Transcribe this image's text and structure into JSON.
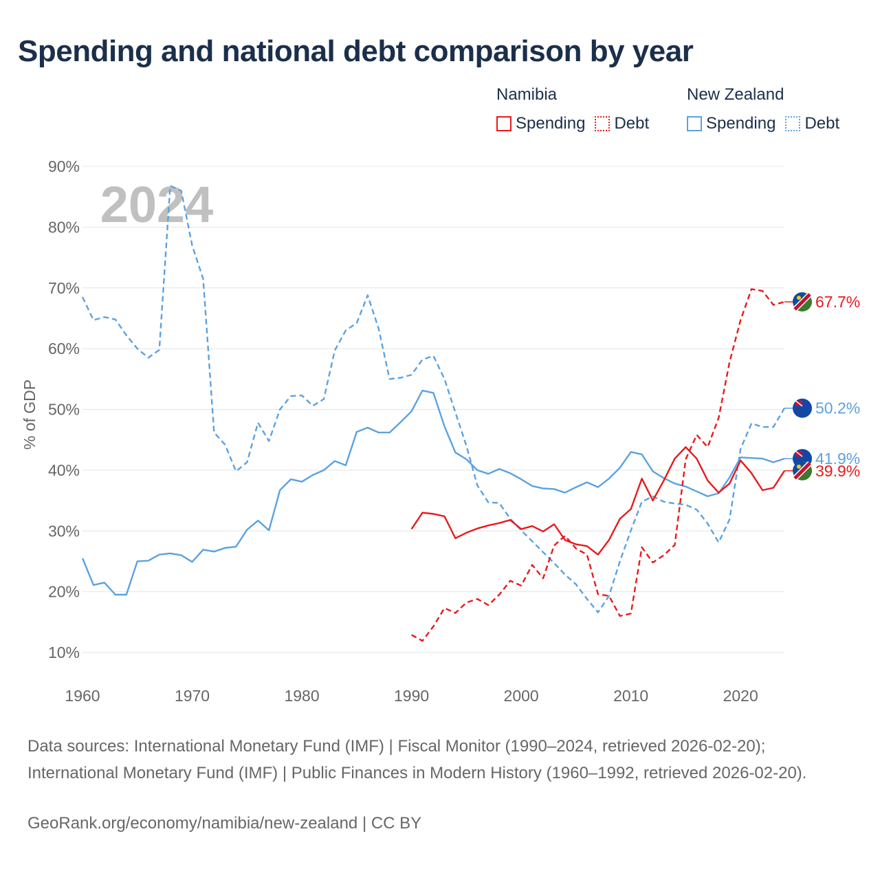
{
  "title": "Spending and national debt comparison by year",
  "legend": {
    "namibia": {
      "name": "Namibia",
      "spending": "Spending",
      "debt": "Debt"
    },
    "nz": {
      "name": "New Zealand",
      "spending": "Spending",
      "debt": "Debt"
    }
  },
  "colors": {
    "namibia": "#e8191b",
    "nz": "#5aa2e0",
    "title": "#1b2f4b",
    "year": "#c0c0c0"
  },
  "chart_data": {
    "type": "line",
    "title": "Spending and national debt comparison by year",
    "ylabel": "% of GDP",
    "xlabel": "",
    "xlim": [
      1960,
      2024
    ],
    "ylim": [
      10,
      90
    ],
    "grid": true,
    "year_label": "2024",
    "x_ticks": [
      1960,
      1970,
      1980,
      1990,
      2000,
      2010,
      2020
    ],
    "y_ticks": [
      {
        "value": 10,
        "label": "10%"
      },
      {
        "value": 20,
        "label": "20%"
      },
      {
        "value": 30,
        "label": "30%"
      },
      {
        "value": 40,
        "label": "40%"
      },
      {
        "value": 50,
        "label": "50%"
      },
      {
        "value": 60,
        "label": "60%"
      },
      {
        "value": 70,
        "label": "70%"
      },
      {
        "value": 80,
        "label": "80%"
      },
      {
        "value": 90,
        "label": "90%"
      }
    ],
    "series": [
      {
        "name": "New Zealand Debt",
        "country": "nz",
        "style": "dashed",
        "end_label": "50.2%",
        "points": [
          [
            1960,
            68.5
          ],
          [
            1961,
            64.7
          ],
          [
            1962,
            65.2
          ],
          [
            1963,
            64.8
          ],
          [
            1964,
            62.2
          ],
          [
            1965,
            60
          ],
          [
            1966,
            58.5
          ],
          [
            1967,
            59.8
          ],
          [
            1968,
            86.8
          ],
          [
            1969,
            86
          ],
          [
            1970,
            77
          ],
          [
            1971,
            71.5
          ],
          [
            1972,
            46.2
          ],
          [
            1973,
            44.2
          ],
          [
            1974,
            39.8
          ],
          [
            1975,
            41.3
          ],
          [
            1976,
            47.8
          ],
          [
            1977,
            44.8
          ],
          [
            1978,
            50
          ],
          [
            1979,
            52.2
          ],
          [
            1980,
            52.3
          ],
          [
            1981,
            50.6
          ],
          [
            1982,
            51.7
          ],
          [
            1983,
            59.7
          ],
          [
            1984,
            63
          ],
          [
            1985,
            64.2
          ],
          [
            1986,
            68.8
          ],
          [
            1987,
            63.3
          ],
          [
            1988,
            55
          ],
          [
            1989,
            55.2
          ],
          [
            1990,
            55.7
          ],
          [
            1991,
            58.2
          ],
          [
            1992,
            58.8
          ],
          [
            1993,
            55
          ],
          [
            1994,
            49.5
          ],
          [
            1995,
            44
          ],
          [
            1996,
            37.5
          ],
          [
            1997,
            34.7
          ],
          [
            1998,
            34.6
          ],
          [
            1999,
            32
          ],
          [
            2000,
            30.1
          ],
          [
            2001,
            28.3
          ],
          [
            2002,
            26.5
          ],
          [
            2003,
            24.7
          ],
          [
            2004,
            22.8
          ],
          [
            2005,
            21.2
          ],
          [
            2006,
            18.8
          ],
          [
            2007,
            16.6
          ],
          [
            2008,
            19.3
          ],
          [
            2009,
            25
          ],
          [
            2010,
            30.1
          ],
          [
            2011,
            34.8
          ],
          [
            2012,
            35.7
          ],
          [
            2013,
            34.8
          ],
          [
            2014,
            34.5
          ],
          [
            2015,
            34.3
          ],
          [
            2016,
            33.5
          ],
          [
            2017,
            31.2
          ],
          [
            2018,
            28.1
          ],
          [
            2019,
            31.9
          ],
          [
            2020,
            43.5
          ],
          [
            2021,
            47.7
          ],
          [
            2022,
            47.1
          ],
          [
            2023,
            47.1
          ],
          [
            2024,
            50.2
          ]
        ]
      },
      {
        "name": "New Zealand Spending",
        "country": "nz",
        "style": "solid",
        "end_label": "41.9%",
        "points": [
          [
            1960,
            25.5
          ],
          [
            1961,
            21.1
          ],
          [
            1962,
            21.5
          ],
          [
            1963,
            19.5
          ],
          [
            1964,
            19.5
          ],
          [
            1965,
            25
          ],
          [
            1966,
            25.1
          ],
          [
            1967,
            26.1
          ],
          [
            1968,
            26.3
          ],
          [
            1969,
            26
          ],
          [
            1970,
            24.9
          ],
          [
            1971,
            26.9
          ],
          [
            1972,
            26.6
          ],
          [
            1973,
            27.2
          ],
          [
            1974,
            27.4
          ],
          [
            1975,
            30.2
          ],
          [
            1976,
            31.7
          ],
          [
            1977,
            30.1
          ],
          [
            1978,
            36.7
          ],
          [
            1979,
            38.5
          ],
          [
            1980,
            38.1
          ],
          [
            1981,
            39.2
          ],
          [
            1982,
            40
          ],
          [
            1983,
            41.5
          ],
          [
            1984,
            40.8
          ],
          [
            1985,
            46.3
          ],
          [
            1986,
            47
          ],
          [
            1987,
            46.2
          ],
          [
            1988,
            46.2
          ],
          [
            1989,
            47.9
          ],
          [
            1990,
            49.7
          ],
          [
            1991,
            53.1
          ],
          [
            1992,
            52.7
          ],
          [
            1993,
            47.2
          ],
          [
            1994,
            42.9
          ],
          [
            1995,
            41.8
          ],
          [
            1996,
            40
          ],
          [
            1997,
            39.4
          ],
          [
            1998,
            40.2
          ],
          [
            1999,
            39.5
          ],
          [
            2000,
            38.5
          ],
          [
            2001,
            37.4
          ],
          [
            2002,
            37
          ],
          [
            2003,
            36.9
          ],
          [
            2004,
            36.3
          ],
          [
            2005,
            37.2
          ],
          [
            2006,
            38
          ],
          [
            2007,
            37.2
          ],
          [
            2008,
            38.6
          ],
          [
            2009,
            40.4
          ],
          [
            2010,
            43
          ],
          [
            2011,
            42.6
          ],
          [
            2012,
            39.8
          ],
          [
            2013,
            38.7
          ],
          [
            2014,
            37.8
          ],
          [
            2015,
            37.3
          ],
          [
            2016,
            36.5
          ],
          [
            2017,
            35.7
          ],
          [
            2018,
            36.2
          ],
          [
            2019,
            38.8
          ],
          [
            2020,
            42.1
          ],
          [
            2021,
            42
          ],
          [
            2022,
            41.9
          ],
          [
            2023,
            41.3
          ],
          [
            2024,
            41.9
          ]
        ]
      },
      {
        "name": "Namibia Debt",
        "country": "namibia",
        "style": "dashed",
        "end_label": "67.7%",
        "points": [
          [
            1990,
            12.9
          ],
          [
            1991,
            11.9
          ],
          [
            1992,
            14.3
          ],
          [
            1993,
            17.3
          ],
          [
            1994,
            16.5
          ],
          [
            1995,
            18.2
          ],
          [
            1996,
            18.8
          ],
          [
            1997,
            17.8
          ],
          [
            1998,
            19.5
          ],
          [
            1999,
            21.8
          ],
          [
            2000,
            21
          ],
          [
            2001,
            24.4
          ],
          [
            2002,
            22.2
          ],
          [
            2003,
            27.6
          ],
          [
            2004,
            29.2
          ],
          [
            2005,
            27.1
          ],
          [
            2006,
            26.1
          ],
          [
            2007,
            19.6
          ],
          [
            2008,
            19.3
          ],
          [
            2009,
            16
          ],
          [
            2010,
            16.4
          ],
          [
            2011,
            27.3
          ],
          [
            2012,
            24.8
          ],
          [
            2013,
            26
          ],
          [
            2014,
            27.7
          ],
          [
            2015,
            41.8
          ],
          [
            2016,
            45.8
          ],
          [
            2017,
            43.8
          ],
          [
            2018,
            48.6
          ],
          [
            2019,
            57.8
          ],
          [
            2020,
            64.7
          ],
          [
            2021,
            69.8
          ],
          [
            2022,
            69.5
          ],
          [
            2023,
            67.2
          ],
          [
            2024,
            67.7
          ]
        ]
      },
      {
        "name": "Namibia Spending",
        "country": "namibia",
        "style": "solid",
        "end_label": "39.9%",
        "points": [
          [
            1990,
            30.3
          ],
          [
            1991,
            33
          ],
          [
            1992,
            32.8
          ],
          [
            1993,
            32.4
          ],
          [
            1994,
            28.8
          ],
          [
            1995,
            29.7
          ],
          [
            1996,
            30.4
          ],
          [
            1997,
            30.9
          ],
          [
            1998,
            31.3
          ],
          [
            1999,
            31.8
          ],
          [
            2000,
            30.3
          ],
          [
            2001,
            30.8
          ],
          [
            2002,
            29.9
          ],
          [
            2003,
            31.1
          ],
          [
            2004,
            28.5
          ],
          [
            2005,
            27.8
          ],
          [
            2006,
            27.5
          ],
          [
            2007,
            26.1
          ],
          [
            2008,
            28.5
          ],
          [
            2009,
            32
          ],
          [
            2010,
            33.6
          ],
          [
            2011,
            38.6
          ],
          [
            2012,
            35
          ],
          [
            2013,
            38.3
          ],
          [
            2014,
            41.9
          ],
          [
            2015,
            43.8
          ],
          [
            2016,
            41.9
          ],
          [
            2017,
            38.3
          ],
          [
            2018,
            36.3
          ],
          [
            2019,
            37.8
          ],
          [
            2020,
            41.6
          ],
          [
            2021,
            39.5
          ],
          [
            2022,
            36.7
          ],
          [
            2023,
            37.1
          ],
          [
            2024,
            39.9
          ]
        ]
      }
    ]
  },
  "sources": {
    "text": "Data sources: International Monetary Fund (IMF) | Fiscal Monitor (1990–2024, retrieved 2026-02-20); International Monetary Fund (IMF) | Public Finances in Modern History (1960–1992, retrieved 2026-02-20).",
    "credit": "GeoRank.org/economy/namibia/new-zealand | CC BY"
  }
}
